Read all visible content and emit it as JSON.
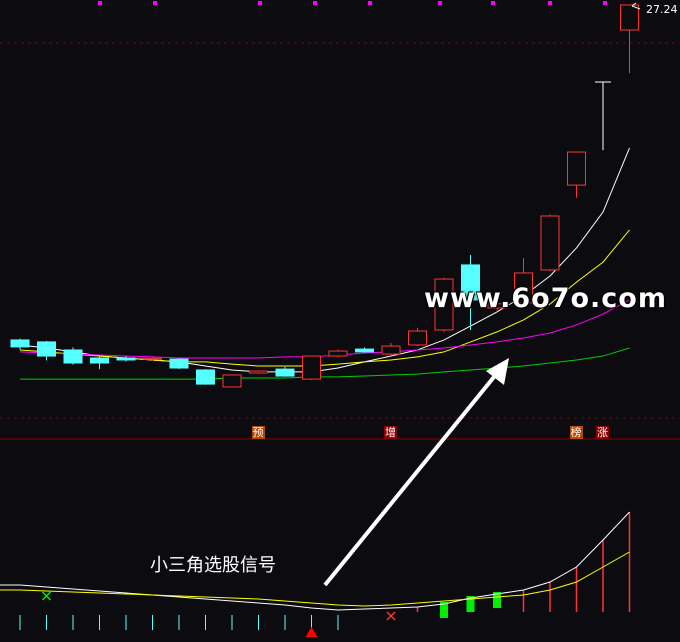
{
  "price_label": "27.24",
  "markers": [
    {
      "text": "预",
      "bg": "#b34700",
      "candle": 9
    },
    {
      "text": "增",
      "bg": "#8b0000",
      "candle": 14
    },
    {
      "text": "榜",
      "bg": "#b34700",
      "candle": 21
    },
    {
      "text": "涨",
      "bg": "#8b0000",
      "candle": 22
    }
  ],
  "caption": "小三角选股信号",
  "watermark": "www.6o7o.com",
  "colors": {
    "up": "#ff3333",
    "down": "#55ffff",
    "ma1": "#ffffff",
    "ma2": "#ffff00",
    "ma3": "#ff00ff",
    "ma4": "#00cc00",
    "bg": "#0c0c10"
  },
  "chart_data": {
    "type": "candlestick",
    "candles": [
      {
        "o": 11.84,
        "c": 11.52,
        "h": 11.9,
        "l": 11.4
      },
      {
        "o": 11.75,
        "c": 11.1,
        "h": 11.8,
        "l": 10.9
      },
      {
        "o": 11.38,
        "c": 10.78,
        "h": 11.5,
        "l": 10.7
      },
      {
        "o": 11.01,
        "c": 10.78,
        "h": 11.1,
        "l": 10.5
      },
      {
        "o": 11.01,
        "c": 10.92,
        "h": 11.1,
        "l": 10.85
      },
      {
        "o": 10.95,
        "c": 11.0,
        "h": 11.05,
        "l": 10.9
      },
      {
        "o": 10.96,
        "c": 10.55,
        "h": 11.0,
        "l": 10.5
      },
      {
        "o": 10.46,
        "c": 9.81,
        "h": 10.5,
        "l": 9.78
      },
      {
        "o": 9.68,
        "c": 10.23,
        "h": 10.25,
        "l": 9.65
      },
      {
        "o": 10.32,
        "c": 10.41,
        "h": 10.45,
        "l": 10.3
      },
      {
        "o": 10.5,
        "c": 10.18,
        "h": 10.6,
        "l": 10.15
      },
      {
        "o": 10.04,
        "c": 11.1,
        "h": 11.12,
        "l": 10.0
      },
      {
        "o": 11.1,
        "c": 11.33,
        "h": 11.4,
        "l": 11.05
      },
      {
        "o": 11.42,
        "c": 11.29,
        "h": 11.5,
        "l": 11.25
      },
      {
        "o": 11.19,
        "c": 11.56,
        "h": 11.7,
        "l": 11.1
      },
      {
        "o": 11.61,
        "c": 12.25,
        "h": 12.4,
        "l": 11.55
      },
      {
        "o": 12.3,
        "c": 14.64,
        "h": 14.7,
        "l": 12.2
      },
      {
        "o": 15.29,
        "c": 13.68,
        "h": 15.75,
        "l": 12.3
      },
      {
        "o": 13.31,
        "c": 13.5,
        "h": 13.9,
        "l": 13.2
      },
      {
        "o": 13.54,
        "c": 14.92,
        "h": 15.61,
        "l": 13.5
      },
      {
        "o": 15.06,
        "c": 17.54,
        "h": 17.6,
        "l": 15.0
      },
      {
        "o": 18.96,
        "c": 20.48,
        "h": 20.5,
        "l": 18.37
      },
      {
        "o": 23.7,
        "c": 23.7,
        "h": 23.7,
        "l": 20.57
      },
      {
        "o": 26.09,
        "c": 27.24,
        "h": 27.24,
        "l": 24.11
      }
    ],
    "ma": [
      {
        "color": "#ffffff",
        "values": [
          11.61,
          11.47,
          11.29,
          11.1,
          11.01,
          10.92,
          10.83,
          10.64,
          10.46,
          10.37,
          10.37,
          10.37,
          10.55,
          10.83,
          11.1,
          11.38,
          11.84,
          12.48,
          13.13,
          13.86,
          14.78,
          16.07,
          17.72,
          20.67
        ]
      },
      {
        "color": "#ffff00",
        "values": [
          11.38,
          11.29,
          11.19,
          11.1,
          11.01,
          10.92,
          10.83,
          10.83,
          10.73,
          10.64,
          10.64,
          10.64,
          10.73,
          10.83,
          10.92,
          11.06,
          11.29,
          11.75,
          12.21,
          12.76,
          13.49,
          14.5,
          15.42,
          16.9
        ]
      },
      {
        "color": "#ff00ff",
        "values": [
          11.29,
          11.24,
          11.19,
          11.15,
          11.1,
          11.06,
          11.01,
          11.01,
          11.01,
          11.01,
          11.06,
          11.06,
          11.15,
          11.24,
          11.29,
          11.38,
          11.47,
          11.61,
          11.75,
          11.93,
          12.16,
          12.53,
          13.03,
          13.68
        ]
      },
      {
        "color": "#00cc00",
        "values": [
          10.04,
          10.04,
          10.04,
          10.04,
          10.04,
          10.04,
          10.04,
          10.04,
          10.09,
          10.09,
          10.09,
          10.14,
          10.14,
          10.18,
          10.23,
          10.27,
          10.37,
          10.46,
          10.55,
          10.64,
          10.78,
          10.92,
          11.1,
          11.47
        ]
      }
    ],
    "indicator": {
      "line1": [
        27,
        25,
        23,
        21,
        19,
        17,
        15,
        13,
        11,
        9,
        7,
        4,
        2,
        3,
        4,
        5,
        8,
        14,
        18,
        22,
        30,
        45,
        72,
        100
      ],
      "line2": [
        22,
        21,
        20,
        19,
        18,
        17,
        16,
        15,
        14,
        13,
        11,
        9,
        7,
        6,
        7,
        9,
        11,
        13,
        15,
        17,
        22,
        30,
        45,
        60
      ],
      "negative_ticks": [
        0,
        1,
        2,
        3,
        4,
        5,
        6,
        7,
        8,
        9,
        10,
        11,
        12
      ],
      "green_blocks": [
        16,
        17,
        18
      ],
      "red_bars": [
        15,
        19,
        20,
        21,
        22,
        23
      ],
      "cross_green": 1,
      "cross_red": 14,
      "triangle": 11
    }
  }
}
